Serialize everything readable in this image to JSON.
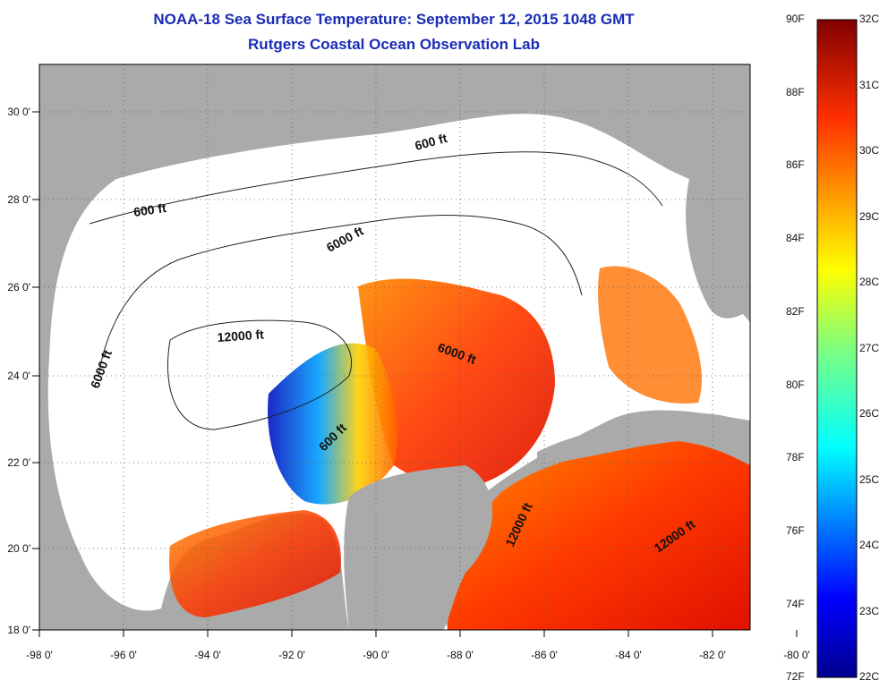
{
  "title": "NOAA-18 Sea Surface Temperature:  September 12, 2015 1048 GMT",
  "subtitle": "Rutgers Coastal Ocean Observation Lab",
  "x_ticks": [
    "-98 0'",
    "-96 0'",
    "-94 0'",
    "-92 0'",
    "-90 0'",
    "-88 0'",
    "-86 0'",
    "-84 0'",
    "-82 0'",
    "-80 0'"
  ],
  "y_ticks": [
    "30 0'",
    "28 0'",
    "26 0'",
    "24 0'",
    "22 0'",
    "20 0'",
    "18 0'"
  ],
  "contours": [
    "600 ft",
    "600 ft",
    "6000 ft",
    "6000 ft",
    "12000 ft",
    "6000 ft",
    "600 ft",
    "12000 ft",
    "12000 ft"
  ],
  "colorbar": {
    "fahrenheit": [
      "90F",
      "88F",
      "86F",
      "84F",
      "82F",
      "80F",
      "78F",
      "76F",
      "74F",
      "72F"
    ],
    "celsius": [
      "32C",
      "31C",
      "30C",
      "29C",
      "28C",
      "27C",
      "26C",
      "25C",
      "24C",
      "23C",
      "22C"
    ]
  },
  "colors": {
    "land": "#aaaaaa",
    "cloud": "#ffffff",
    "title": "#1a2cb4"
  }
}
